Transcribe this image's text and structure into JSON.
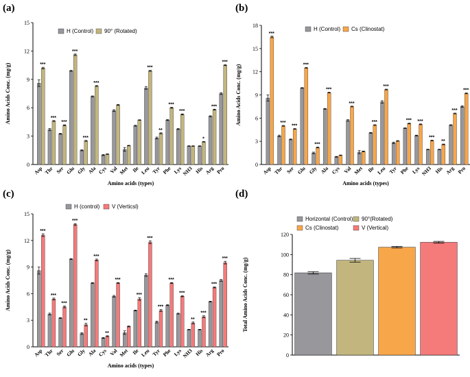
{
  "colors": {
    "control": "#97979c",
    "rotated": "#c2b67e",
    "clinostat": "#f8a64a",
    "vertical": "#f57a7a",
    "axis": "#000000"
  },
  "chart_data": [
    {
      "panel": "(a)",
      "type": "bar",
      "categories": [
        "Asp",
        "Thr",
        "Ser",
        "Glu",
        "Gly",
        "Ala",
        "Cys",
        "Val",
        "Met",
        "Ile",
        "Leu",
        "Tyr",
        "Phe",
        "Lys",
        "NH3",
        "His",
        "Arg",
        "Pro"
      ],
      "series": [
        {
          "name": "H (Control)",
          "color_key": "control",
          "values": [
            8.6,
            3.7,
            3.25,
            9.9,
            1.5,
            7.2,
            1.0,
            5.7,
            1.6,
            4.1,
            8.1,
            2.8,
            4.7,
            3.75,
            1.95,
            1.95,
            5.1,
            7.5
          ],
          "errors": [
            0.35,
            0.1,
            0.05,
            0.05,
            0.05,
            0.05,
            0.05,
            0.1,
            0.2,
            0.05,
            0.15,
            0.1,
            0.05,
            0.05,
            0.03,
            0.03,
            0.05,
            0.1
          ]
        },
        {
          "name": "90° (Rotated)",
          "color_key": "rotated",
          "values": [
            10.2,
            4.6,
            4.15,
            11.6,
            2.5,
            8.3,
            1.1,
            6.3,
            2.0,
            4.7,
            9.9,
            3.3,
            6.0,
            5.3,
            1.95,
            2.4,
            5.8,
            10.5
          ],
          "errors": [
            0.08,
            0.05,
            0.05,
            0.08,
            0.05,
            0.05,
            0.03,
            0.05,
            0.03,
            0.03,
            0.05,
            0.05,
            0.05,
            0.05,
            0.03,
            0.03,
            0.05,
            0.05
          ]
        }
      ],
      "significance": [
        "***",
        "***",
        "***",
        "***",
        "***",
        "***",
        "",
        "",
        "",
        "",
        "***",
        "**",
        "***",
        "***",
        "",
        "*",
        "***",
        "***"
      ],
      "title": "",
      "xlabel": "Amino acids (types)",
      "ylabel": "Amino Acids Conc. (mg/g)",
      "ylim": [
        0,
        15
      ],
      "yticks": [
        "0",
        "3",
        "6",
        "9",
        "12",
        "15"
      ],
      "legend_position": "top-left"
    },
    {
      "panel": "(b)",
      "type": "bar",
      "categories": [
        "Asp",
        "Thr",
        "Ser",
        "Glu",
        "Gly",
        "Ala",
        "Cys",
        "Val",
        "Met",
        "Ile",
        "Leu",
        "Tyr",
        "Phe",
        "Lys",
        "NH3",
        "His",
        "Arg",
        "Pro"
      ],
      "series": [
        {
          "name": "H (Control)",
          "color_key": "control",
          "values": [
            8.6,
            3.7,
            3.25,
            9.9,
            1.5,
            7.2,
            1.0,
            5.7,
            1.6,
            4.1,
            8.1,
            2.8,
            4.7,
            3.75,
            1.95,
            1.95,
            5.1,
            7.5
          ],
          "errors": [
            0.4,
            0.1,
            0.05,
            0.05,
            0.1,
            0.05,
            0.05,
            0.1,
            0.2,
            0.05,
            0.15,
            0.1,
            0.05,
            0.05,
            0.03,
            0.03,
            0.05,
            0.1
          ]
        },
        {
          "name": "Cs (Clinostat)",
          "color_key": "clinostat",
          "values": [
            16.5,
            5.0,
            4.6,
            12.5,
            2.2,
            9.3,
            1.2,
            7.5,
            1.7,
            5.1,
            9.7,
            3.05,
            5.3,
            5.2,
            3.1,
            2.6,
            6.6,
            9.2
          ],
          "errors": [
            0.1,
            0.05,
            0.05,
            0.05,
            0.05,
            0.05,
            0.03,
            0.05,
            0.05,
            0.05,
            0.05,
            0.05,
            0.05,
            0.05,
            0.05,
            0.05,
            0.05,
            0.05
          ]
        }
      ],
      "significance": [
        "***",
        "***",
        "***",
        "***",
        "***",
        "***",
        "",
        "***",
        "",
        "***",
        "***",
        "",
        "***",
        "***",
        "***",
        "**",
        "***",
        "***"
      ],
      "title": "",
      "xlabel": "Amino acids (types)",
      "ylabel": "Amino Acids Conc. (mg/g)",
      "ylim": [
        0,
        18
      ],
      "yticks": [
        "0",
        "3",
        "6",
        "9",
        "12",
        "15",
        "18"
      ],
      "legend_position": "top-left"
    },
    {
      "panel": "(c)",
      "type": "bar",
      "categories": [
        "Asp",
        "Thr",
        "Ser",
        "Glu",
        "Gly",
        "Ala",
        "Cys",
        "Val",
        "Met",
        "Ile",
        "Leu",
        "Tyr",
        "Phe",
        "Lys",
        "NH3",
        "His",
        "Arg",
        "Pro"
      ],
      "series": [
        {
          "name": "H (control)",
          "color_key": "control",
          "values": [
            8.6,
            3.7,
            3.25,
            9.9,
            1.5,
            7.2,
            1.0,
            5.7,
            1.6,
            4.1,
            8.1,
            2.8,
            4.7,
            3.75,
            1.95,
            1.95,
            5.1,
            7.5
          ],
          "errors": [
            0.4,
            0.1,
            0.05,
            0.05,
            0.1,
            0.05,
            0.05,
            0.1,
            0.2,
            0.05,
            0.15,
            0.1,
            0.05,
            0.05,
            0.03,
            0.03,
            0.05,
            0.1
          ]
        },
        {
          "name": "V (Verticsl)",
          "color_key": "vertical",
          "values": [
            12.6,
            5.4,
            4.5,
            13.8,
            2.5,
            9.8,
            1.2,
            7.2,
            2.3,
            5.4,
            11.8,
            4.1,
            7.2,
            5.7,
            2.7,
            3.4,
            6.7,
            9.5
          ],
          "errors": [
            0.15,
            0.1,
            0.1,
            0.1,
            0.15,
            0.1,
            0.05,
            0.05,
            0.05,
            0.15,
            0.15,
            0.1,
            0.05,
            0.05,
            0.1,
            0.1,
            0.05,
            0.15
          ]
        }
      ],
      "significance": [
        "***",
        "***",
        "***",
        "***",
        "**",
        "***",
        "**",
        "***",
        "",
        "***",
        "***",
        "***",
        "***",
        "***",
        "**",
        "***",
        "***",
        "***"
      ],
      "title": "",
      "xlabel": "Amino acids (types)",
      "ylabel": "Amino Acids Conc. (mg/g)",
      "ylim": [
        0,
        15
      ],
      "yticks": [
        "0",
        "3",
        "6",
        "9",
        "12",
        "15"
      ],
      "legend_position": "top-left"
    },
    {
      "panel": "(d)",
      "type": "bar",
      "categories": [
        "Horizontal (Control)",
        "90°(Rotated)",
        "Cs (Clinostat)",
        "V (Vertical)"
      ],
      "values": [
        81.8,
        94.3,
        107.3,
        112.2
      ],
      "errors": [
        1.2,
        1.8,
        0.8,
        0.9
      ],
      "color_keys": [
        "control",
        "rotated",
        "clinostat",
        "vertical"
      ],
      "title": "",
      "xlabel": "",
      "ylabel": "Total Amino Acids Conc. (mg/g)",
      "ylim": [
        0,
        120
      ],
      "yticks": [
        "0",
        "20",
        "40",
        "60",
        "80",
        "100",
        "120"
      ],
      "legend_position": "top"
    }
  ]
}
